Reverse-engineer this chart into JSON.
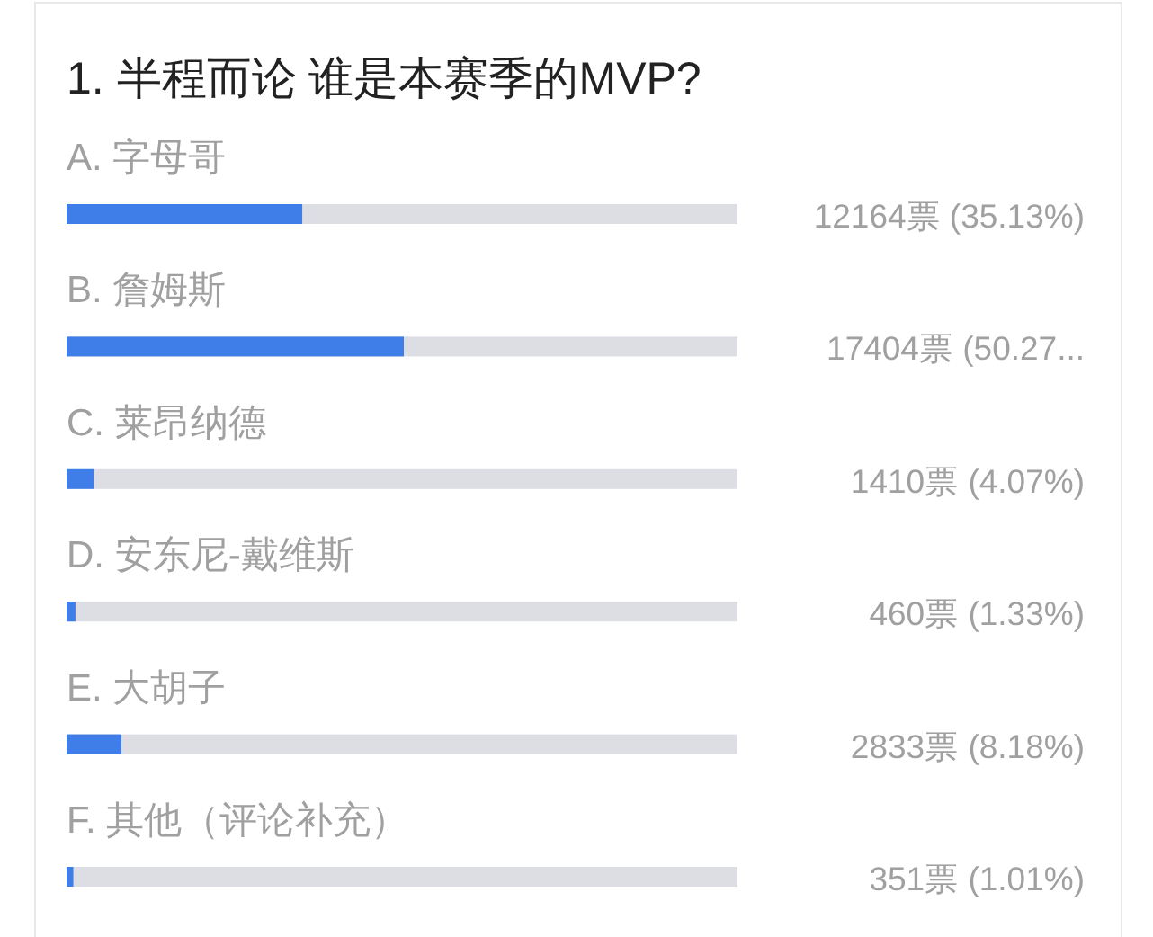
{
  "chart_data": {
    "type": "bar",
    "orientation": "horizontal",
    "title": "1. 半程而论 谁是本赛季的MVP?",
    "categories": [
      "A. 字母哥",
      "B. 詹姆斯",
      "C. 莱昂纳德",
      "D. 安东尼-戴维斯",
      "E. 大胡子",
      "F. 其他（评论补充）"
    ],
    "values": [
      35.13,
      50.27,
      4.07,
      1.33,
      8.18,
      1.01
    ],
    "value_labels": [
      "12164票 (35.13%)",
      "17404票 (50.27...",
      "1410票 (4.07%)",
      "460票 (1.33%)",
      "2833票 (8.18%)",
      "351票 (1.01%)"
    ],
    "color": "#3f7de8",
    "xlim": [
      0,
      100
    ]
  }
}
